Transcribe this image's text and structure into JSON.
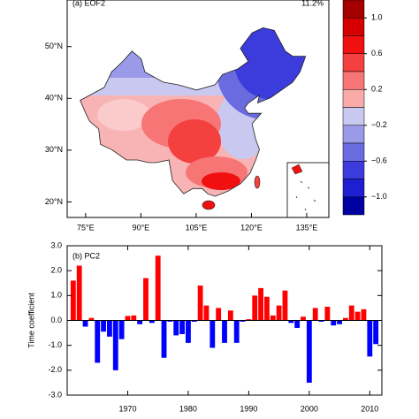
{
  "chart_data": [
    {
      "type": "map",
      "title": "(a) EOF2",
      "annotation": "11.2%",
      "xlim": [
        70,
        141
      ],
      "ylim": [
        17,
        59
      ],
      "xticks": [
        {
          "value": 75,
          "label": "75°E"
        },
        {
          "value": 90,
          "label": "90°E"
        },
        {
          "value": 105,
          "label": "105°E"
        },
        {
          "value": 120,
          "label": "120°E"
        },
        {
          "value": 135,
          "label": "135°E"
        }
      ],
      "yticks": [
        {
          "value": 20,
          "label": "20°N"
        },
        {
          "value": 30,
          "label": "30°N"
        },
        {
          "value": 40,
          "label": "40°N"
        },
        {
          "value": 50,
          "label": "50°N"
        }
      ],
      "colorbar": {
        "lim": [
          -1.2,
          1.2
        ],
        "ticks": [
          {
            "value": 1.0,
            "label": "1.0"
          },
          {
            "value": 0.6,
            "label": "0.6"
          },
          {
            "value": 0.2,
            "label": "0.2"
          },
          {
            "value": -0.2,
            "label": "−0.2"
          },
          {
            "value": -0.6,
            "label": "−0.6"
          },
          {
            "value": -1.0,
            "label": "−1.0"
          }
        ],
        "colors": [
          "#a50000",
          "#d40000",
          "#f01010",
          "#f54040",
          "#f87575",
          "#fbaaaa",
          "#c8c8f0",
          "#9a9ae8",
          "#6b6be0",
          "#3c3cdc",
          "#1e1ed2",
          "#0000a0"
        ]
      }
    },
    {
      "type": "bar",
      "title": "(b) PC2",
      "ylabel": "Time coefficient",
      "x": [
        1961,
        1962,
        1963,
        1964,
        1965,
        1966,
        1967,
        1968,
        1969,
        1970,
        1971,
        1972,
        1973,
        1974,
        1975,
        1976,
        1977,
        1978,
        1979,
        1980,
        1981,
        1982,
        1983,
        1984,
        1985,
        1986,
        1987,
        1988,
        1989,
        1990,
        1991,
        1992,
        1993,
        1994,
        1995,
        1996,
        1997,
        1998,
        1999,
        2000,
        2001,
        2002,
        2003,
        2004,
        2005,
        2006,
        2007,
        2008,
        2009,
        2010,
        2011
      ],
      "values": [
        1.6,
        2.2,
        -0.25,
        0.1,
        -1.7,
        -0.45,
        -0.65,
        -2.0,
        -0.75,
        0.18,
        0.2,
        -0.15,
        1.7,
        -0.1,
        2.6,
        -1.5,
        -0.05,
        -0.6,
        -0.55,
        -0.9,
        -0.05,
        1.4,
        0.6,
        -1.1,
        0.5,
        -0.9,
        0.4,
        -0.9,
        -0.05,
        0.05,
        1.0,
        1.3,
        0.95,
        0.2,
        0.6,
        1.2,
        -0.1,
        -0.3,
        0.15,
        -2.5,
        0.5,
        -0.05,
        0.55,
        -0.2,
        -0.15,
        0.1,
        0.6,
        0.35,
        0.45,
        -1.45,
        -0.95
      ],
      "pos_color": "#ff0000",
      "neg_color": "#0000ff",
      "xlim": [
        1960,
        2012
      ],
      "xticks": [
        1970,
        1980,
        1990,
        2000,
        2010
      ],
      "ylim": [
        -3,
        3
      ],
      "yticks": [
        {
          "value": -3,
          "label": "-3.0"
        },
        {
          "value": -2,
          "label": "-2.0"
        },
        {
          "value": -1,
          "label": "-1.0"
        },
        {
          "value": 0,
          "label": "0.0"
        },
        {
          "value": 1,
          "label": "1.0"
        },
        {
          "value": 2,
          "label": "2.0"
        },
        {
          "value": 3,
          "label": "3.0"
        }
      ]
    }
  ]
}
